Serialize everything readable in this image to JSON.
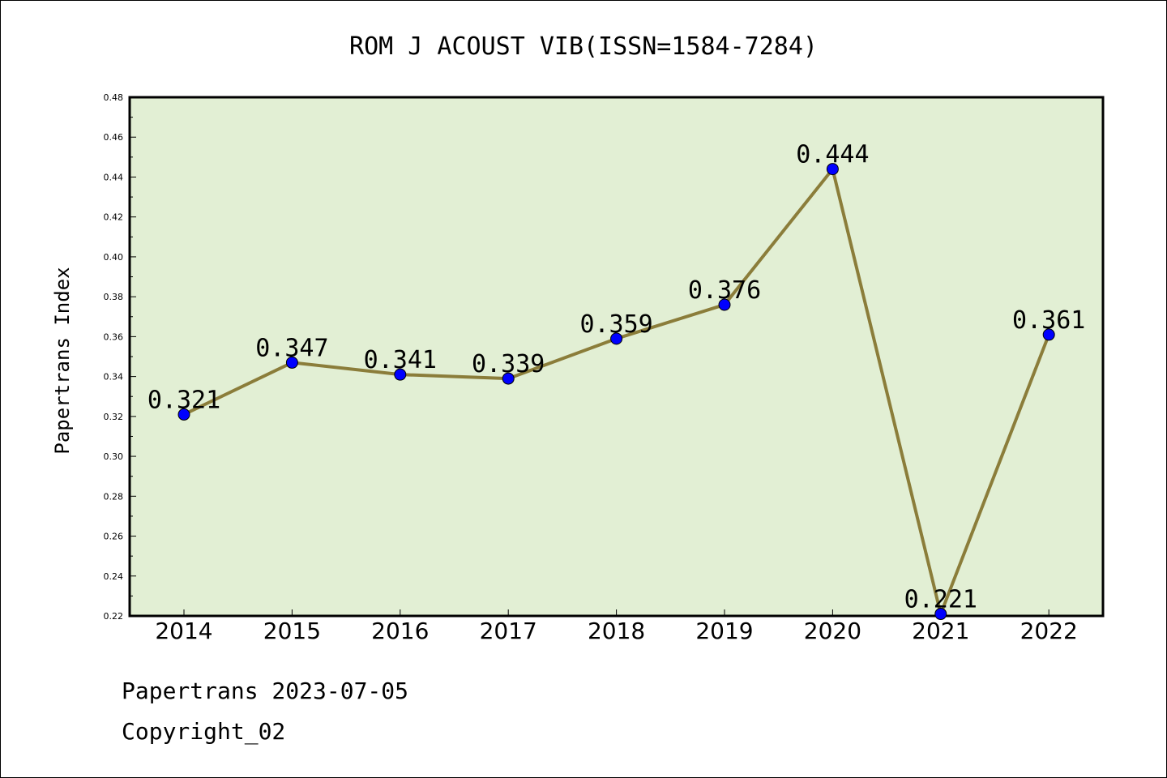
{
  "chart_data": {
    "type": "line",
    "title": "ROM J ACOUST VIB(ISSN=1584-7284)",
    "ylabel": "Papertrans Index",
    "xlabel": "",
    "categories": [
      "2014",
      "2015",
      "2016",
      "2017",
      "2018",
      "2019",
      "2020",
      "2021",
      "2022"
    ],
    "values": [
      0.321,
      0.347,
      0.341,
      0.339,
      0.359,
      0.376,
      0.444,
      0.221,
      0.361
    ],
    "data_labels": [
      "0.321",
      "0.347",
      "0.341",
      "0.339",
      "0.359",
      "0.376",
      "0.444",
      "0.221",
      "0.361"
    ],
    "ylim": [
      0.22,
      0.48
    ],
    "yticks": [
      "0.22",
      "0.24",
      "0.26",
      "0.28",
      "0.30",
      "0.32",
      "0.34",
      "0.36",
      "0.38",
      "0.40",
      "0.42",
      "0.44",
      "0.46",
      "0.48"
    ],
    "grid": false,
    "colors": {
      "line": "#8b7d3a",
      "marker": "#0000ff",
      "plot_background": "#e2efd4"
    }
  },
  "footer": {
    "line1": "Papertrans 2023-07-05",
    "line2": "Copyright_02"
  }
}
